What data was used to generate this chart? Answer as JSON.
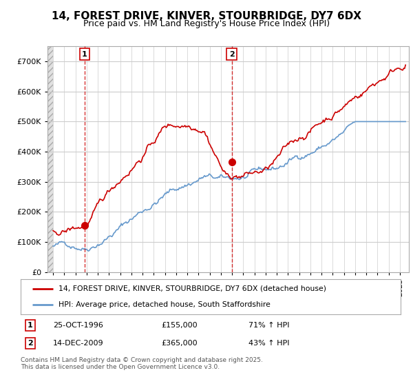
{
  "title": "14, FOREST DRIVE, KINVER, STOURBRIDGE, DY7 6DX",
  "subtitle": "Price paid vs. HM Land Registry's House Price Index (HPI)",
  "ylim": [
    0,
    750000
  ],
  "yticks": [
    0,
    100000,
    200000,
    300000,
    400000,
    500000,
    600000,
    700000
  ],
  "ytick_labels": [
    "£0",
    "£100K",
    "£200K",
    "£300K",
    "£400K",
    "£500K",
    "£600K",
    "£700K"
  ],
  "xmin": 1993.5,
  "xmax": 2025.8,
  "sale1_x": 1996.82,
  "sale1_y": 155000,
  "sale2_x": 2009.96,
  "sale2_y": 365000,
  "legend_line1": "14, FOREST DRIVE, KINVER, STOURBRIDGE, DY7 6DX (detached house)",
  "legend_line2": "HPI: Average price, detached house, South Staffordshire",
  "footnote": "Contains HM Land Registry data © Crown copyright and database right 2025.\nThis data is licensed under the Open Government Licence v3.0.",
  "red_color": "#cc0000",
  "blue_color": "#6699cc",
  "background_color": "#ffffff",
  "grid_color": "#cccccc"
}
